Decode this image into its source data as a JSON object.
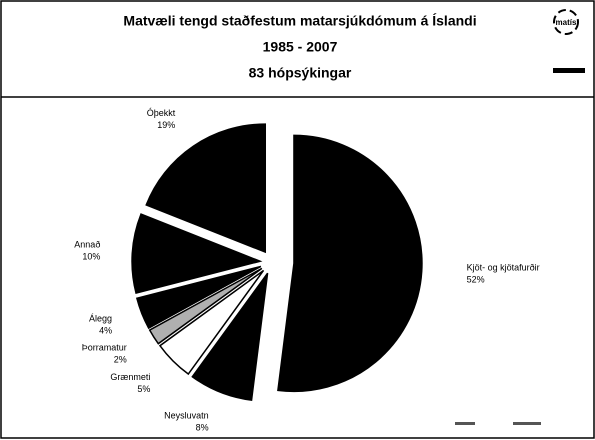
{
  "logo": "matís",
  "chart_data": {
    "type": "pie",
    "title": [
      "Matvæli tengd staðfestum matarsjúkdómum á Íslandi",
      "1985 - 2007",
      "83 hópsýkingar"
    ],
    "categories": [
      "Kjöt- og kjötafurðir",
      "Neysluvatn",
      "Grænmeti",
      "Þorramatur",
      "Álegg",
      "Annað",
      "Óþekkt"
    ],
    "values": [
      52,
      8,
      5,
      2,
      4,
      10,
      19
    ],
    "value_labels": [
      "52%",
      "8%",
      "5%",
      "2%",
      "4%",
      "10%",
      "19%"
    ],
    "colors": [
      "#000000",
      "#000000",
      "#ffffff",
      "#b0b0b0",
      "#000000",
      "#000000",
      "#000000"
    ]
  }
}
